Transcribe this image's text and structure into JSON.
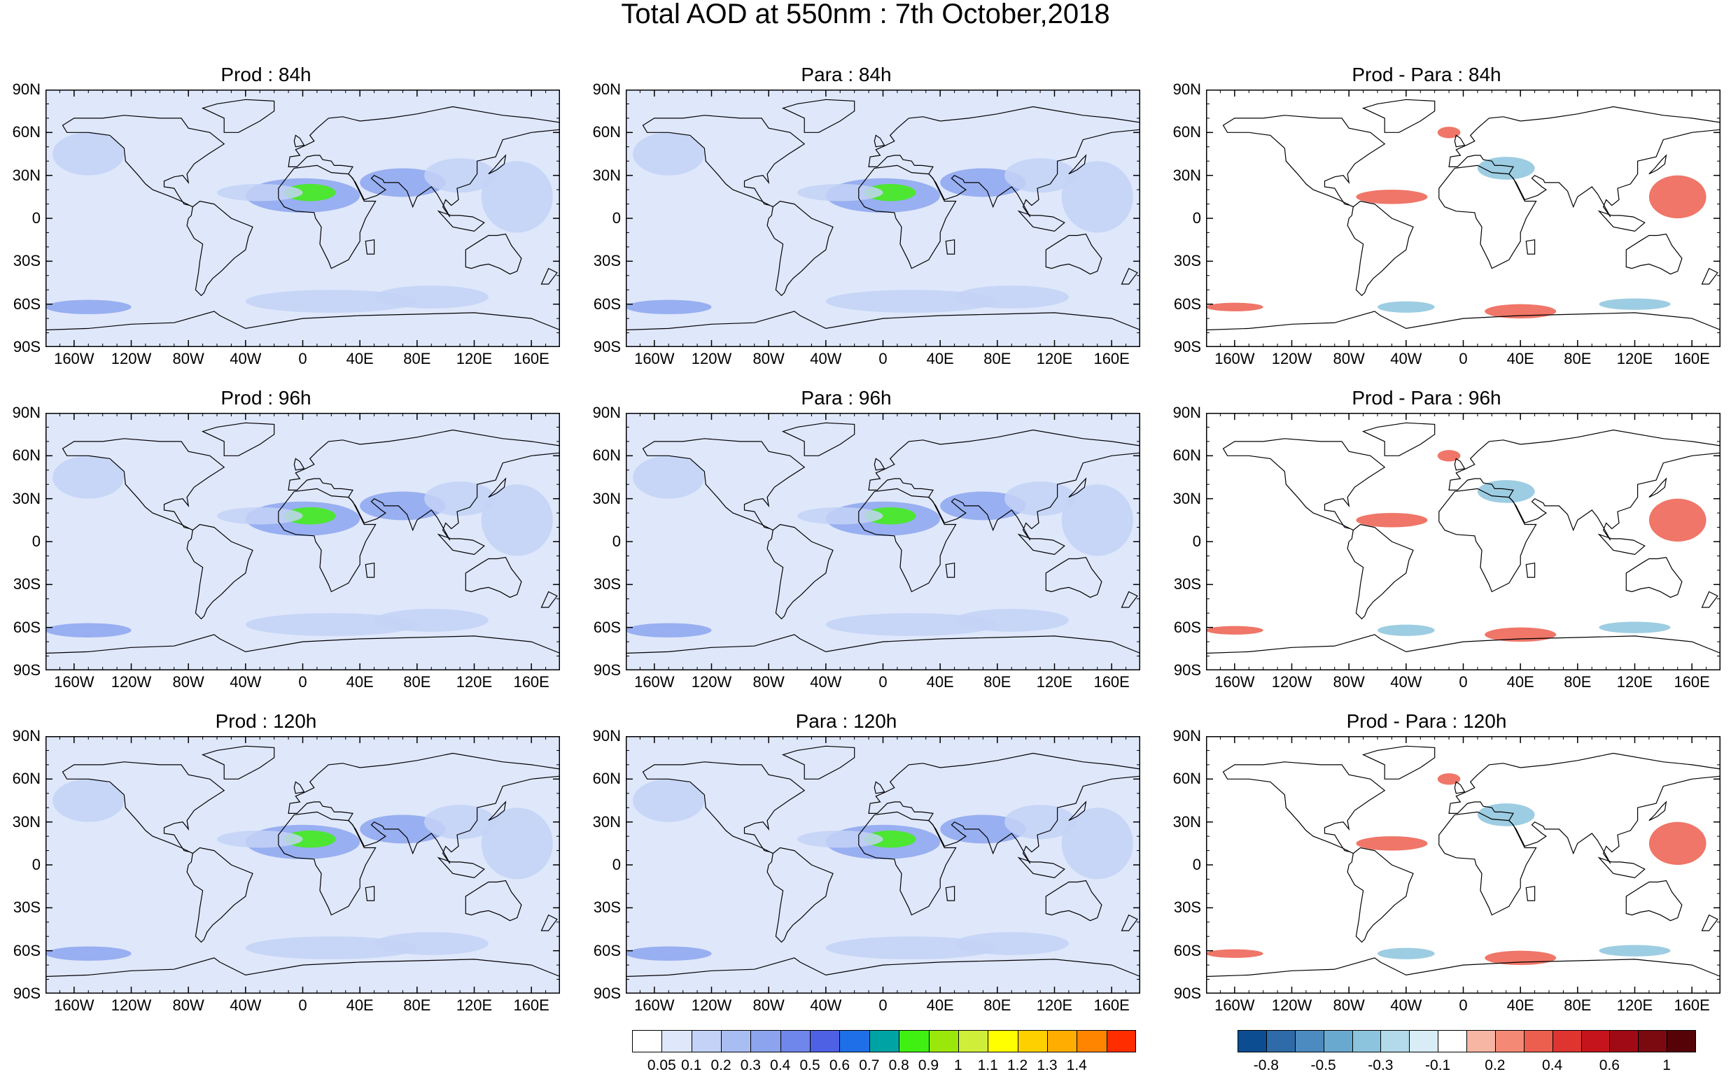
{
  "title": "Total AOD at 550nm : 7th October,2018",
  "lat_labels": [
    "90N",
    "60N",
    "30N",
    "0",
    "30S",
    "60S",
    "90S"
  ],
  "lon_labels": [
    "160W",
    "120W",
    "80W",
    "40W",
    "0",
    "40E",
    "80E",
    "120E",
    "160E"
  ],
  "panels": [
    {
      "title": "Prod : 84h",
      "type": "aod"
    },
    {
      "title": "Para : 84h",
      "type": "aod"
    },
    {
      "title": "Prod - Para : 84h",
      "type": "diff"
    },
    {
      "title": "Prod : 96h",
      "type": "aod"
    },
    {
      "title": "Para : 96h",
      "type": "aod"
    },
    {
      "title": "Prod - Para : 96h",
      "type": "diff"
    },
    {
      "title": "Prod : 120h",
      "type": "aod"
    },
    {
      "title": "Para : 120h",
      "type": "aod"
    },
    {
      "title": "Prod - Para : 120h",
      "type": "diff"
    }
  ],
  "aod_colorbar": {
    "colors": [
      "#ffffff",
      "#dfe7fb",
      "#c3d2f6",
      "#a8bdf2",
      "#8ca4ee",
      "#6f86ea",
      "#4e60e4",
      "#1f6fe8",
      "#00a3a3",
      "#3ff012",
      "#9be70c",
      "#cfee3a",
      "#ffff00",
      "#ffd000",
      "#ffae00",
      "#ff8400",
      "#ff2d00"
    ],
    "labels": [
      "0.05",
      "0.1",
      "0.2",
      "0.3",
      "0.4",
      "0.5",
      "0.6",
      "0.7",
      "0.8",
      "0.9",
      "1",
      "1.1",
      "1.2",
      "1.3",
      "1.4"
    ]
  },
  "diff_colorbar": {
    "colors": [
      "#0c4d92",
      "#2e6ba8",
      "#4b8bbf",
      "#6aa9cf",
      "#8cc4dd",
      "#b3daea",
      "#d8edf5",
      "#ffffff",
      "#f7b5a3",
      "#f48a76",
      "#ec5e4e",
      "#df3530",
      "#c6141c",
      "#a00a14",
      "#7a0a10",
      "#560308"
    ],
    "labels": [
      "-0.8",
      "-0.5",
      "-0.3",
      "-0.1",
      "0.2",
      "0.4",
      "0.6",
      "1"
    ]
  },
  "colors": {
    "aod_background": "#dfe7fb",
    "aod_mid": "#c3d2f6",
    "aod_high": "#8ca4ee",
    "dust_core": "#3ff012",
    "diff_positive": "#ec5e4e",
    "diff_negative": "#8cc4dd"
  }
}
